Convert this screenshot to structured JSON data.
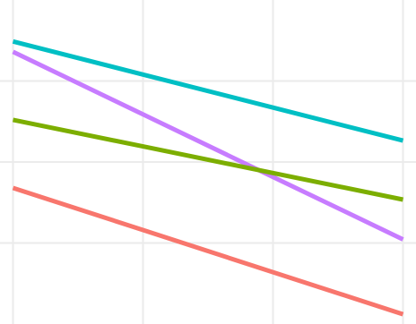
{
  "chart_data": {
    "type": "line",
    "title": "",
    "xlabel": "",
    "ylabel": "",
    "x": [
      1,
      2,
      3,
      4
    ],
    "xlim": [
      0.9,
      4.1
    ],
    "ylim": [
      0,
      1
    ],
    "grid": true,
    "background": "#ffffff",
    "grid_color": "#ebebeb",
    "series": [
      {
        "color": "#00bfc4",
        "values": [
          0.872,
          0.77,
          0.668,
          0.566
        ]
      },
      {
        "color": "#c77cff",
        "values": [
          0.84,
          0.647,
          0.454,
          0.261
        ]
      },
      {
        "color": "#7cae00",
        "values": [
          0.63,
          0.548,
          0.466,
          0.384
        ]
      },
      {
        "color": "#f8766d",
        "values": [
          0.42,
          0.29,
          0.16,
          0.03
        ]
      }
    ]
  }
}
